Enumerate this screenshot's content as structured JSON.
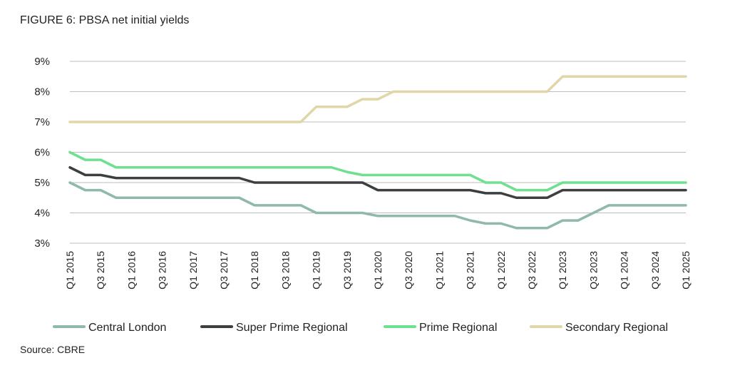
{
  "title": "FIGURE 6: PBSA net initial yields",
  "source": "Source: CBRE",
  "chart_data": {
    "type": "line",
    "title": "FIGURE 6: PBSA net initial yields",
    "xlabel": "",
    "ylabel": "",
    "ylim": [
      3,
      9
    ],
    "yticks": [
      3,
      4,
      5,
      6,
      7,
      8,
      9
    ],
    "ytick_labels": [
      "3%",
      "4%",
      "5%",
      "6%",
      "7%",
      "8%",
      "9%"
    ],
    "x": [
      "Q1 2015",
      "Q2 2015",
      "Q3 2015",
      "Q4 2015",
      "Q1 2016",
      "Q2 2016",
      "Q3 2016",
      "Q4 2016",
      "Q1 2017",
      "Q2 2017",
      "Q3 2017",
      "Q4 2017",
      "Q1 2018",
      "Q2 2018",
      "Q3 2018",
      "Q4 2018",
      "Q1 2019",
      "Q2 2019",
      "Q3 2019",
      "Q4 2019",
      "Q1 2020",
      "Q2 2020",
      "Q3 2020",
      "Q4 2020",
      "Q1 2021",
      "Q2 2021",
      "Q3 2021",
      "Q4 2021",
      "Q1 2022",
      "Q2 2022",
      "Q3 2022",
      "Q4 2022",
      "Q1 2023",
      "Q2 2023",
      "Q3 2023",
      "Q4 2023",
      "Q1 2024",
      "Q2 2024",
      "Q3 2024",
      "Q4 2024",
      "Q1 2025"
    ],
    "xtick_labels": [
      "Q1 2015",
      "Q3 2015",
      "Q1 2016",
      "Q3 2016",
      "Q1 2017",
      "Q3 2017",
      "Q1 2018",
      "Q3 2018",
      "Q1 2019",
      "Q3 2019",
      "Q1 2020",
      "Q3 2020",
      "Q1 2021",
      "Q3 2021",
      "Q1 2022",
      "Q3 2022",
      "Q1 2023",
      "Q3 2023",
      "Q1 2024",
      "Q3 2024",
      "Q1 2025"
    ],
    "grid": true,
    "legend_position": "bottom",
    "series": [
      {
        "name": "Central London",
        "color": "#8fb9aa",
        "values": [
          5.0,
          4.75,
          4.75,
          4.5,
          4.5,
          4.5,
          4.5,
          4.5,
          4.5,
          4.5,
          4.5,
          4.5,
          4.25,
          4.25,
          4.25,
          4.25,
          4.0,
          4.0,
          4.0,
          4.0,
          3.9,
          3.9,
          3.9,
          3.9,
          3.9,
          3.9,
          3.75,
          3.65,
          3.65,
          3.5,
          3.5,
          3.5,
          3.75,
          3.75,
          4.0,
          4.25,
          4.25,
          4.25,
          4.25,
          4.25,
          4.25
        ]
      },
      {
        "name": "Super Prime Regional",
        "color": "#3b3f3f",
        "values": [
          5.5,
          5.25,
          5.25,
          5.15,
          5.15,
          5.15,
          5.15,
          5.15,
          5.15,
          5.15,
          5.15,
          5.15,
          5.0,
          5.0,
          5.0,
          5.0,
          5.0,
          5.0,
          5.0,
          5.0,
          4.75,
          4.75,
          4.75,
          4.75,
          4.75,
          4.75,
          4.75,
          4.65,
          4.65,
          4.5,
          4.5,
          4.5,
          4.75,
          4.75,
          4.75,
          4.75,
          4.75,
          4.75,
          4.75,
          4.75,
          4.75
        ]
      },
      {
        "name": "Prime Regional",
        "color": "#6ee08f",
        "values": [
          6.0,
          5.75,
          5.75,
          5.5,
          5.5,
          5.5,
          5.5,
          5.5,
          5.5,
          5.5,
          5.5,
          5.5,
          5.5,
          5.5,
          5.5,
          5.5,
          5.5,
          5.5,
          5.35,
          5.25,
          5.25,
          5.25,
          5.25,
          5.25,
          5.25,
          5.25,
          5.25,
          5.0,
          5.0,
          4.75,
          4.75,
          4.75,
          5.0,
          5.0,
          5.0,
          5.0,
          5.0,
          5.0,
          5.0,
          5.0,
          5.0
        ]
      },
      {
        "name": "Secondary Regional",
        "color": "#e0d6a8",
        "values": [
          7.0,
          7.0,
          7.0,
          7.0,
          7.0,
          7.0,
          7.0,
          7.0,
          7.0,
          7.0,
          7.0,
          7.0,
          7.0,
          7.0,
          7.0,
          7.0,
          7.5,
          7.5,
          7.5,
          7.75,
          7.75,
          8.0,
          8.0,
          8.0,
          8.0,
          8.0,
          8.0,
          8.0,
          8.0,
          8.0,
          8.0,
          8.0,
          8.5,
          8.5,
          8.5,
          8.5,
          8.5,
          8.5,
          8.5,
          8.5,
          8.5
        ]
      }
    ]
  }
}
